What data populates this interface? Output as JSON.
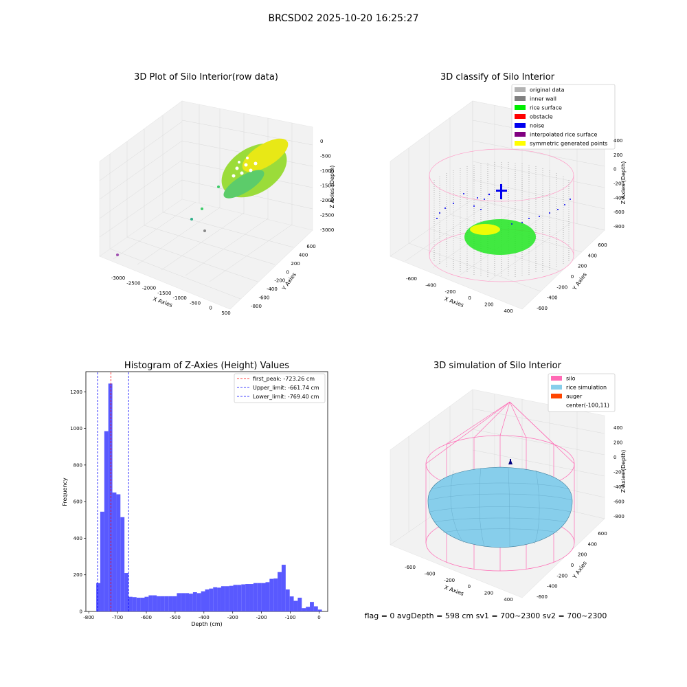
{
  "suptitle": "BRCSD02 2025-10-20 16:25:27",
  "status_text": "flag = 0     avgDepth = 598 cm  sv1 = 700~2300  sv2 = 700~2300",
  "panels": {
    "raw": {
      "title": "3D Plot of Silo Interior(row data)",
      "xlabel": "X Axies",
      "ylabel": "Y Axies",
      "zlabel": "Z Axies (Depth)",
      "xticks": [
        "-3000",
        "-2500",
        "-2000",
        "-1500",
        "-1000",
        "-500",
        "0",
        "500"
      ],
      "yticks": [
        "-800",
        "-600",
        "-400",
        "-200",
        "0",
        "200",
        "400",
        "600"
      ],
      "zticks": [
        "0",
        "-500",
        "-1000",
        "-1500",
        "-2000",
        "-2500",
        "-3000"
      ]
    },
    "classify": {
      "title": "3D classify of Silo Interior",
      "xlabel": "X Axies",
      "ylabel": "Y Axies",
      "zlabel": "Z Axies (Depth)",
      "xticks": [
        "-600",
        "-400",
        "-200",
        "0",
        "200",
        "400"
      ],
      "yticks": [
        "-600",
        "-400",
        "-200",
        "0",
        "200",
        "400",
        "600"
      ],
      "zticks": [
        "400",
        "200",
        "0",
        "-200",
        "-400",
        "-600",
        "-800"
      ],
      "legend": [
        {
          "label": "original data",
          "color": "#b3b3b3"
        },
        {
          "label": "inner wall",
          "color": "#808080"
        },
        {
          "label": "rice surface",
          "color": "#00ee00"
        },
        {
          "label": "obstacle",
          "color": "#ff0000"
        },
        {
          "label": "noise",
          "color": "#0000ee"
        },
        {
          "label": "interpolated rice surface",
          "color": "#800080"
        },
        {
          "label": "symmetric generated points",
          "color": "#ffff00"
        }
      ]
    },
    "simulation": {
      "title": "3D simulation of Silo Interior",
      "xlabel": "X Axies",
      "ylabel": "Y Axies",
      "zlabel": "Z Axies (Depth)",
      "xticks": [
        "-600",
        "-400",
        "-200",
        "0",
        "200",
        "400"
      ],
      "yticks": [
        "-600",
        "-400",
        "-200",
        "0",
        "200",
        "400",
        "600"
      ],
      "zticks": [
        "400",
        "200",
        "0",
        "-200",
        "-400",
        "-600",
        "-800"
      ],
      "legend": [
        {
          "label": "silo",
          "color": "#ff69b4"
        },
        {
          "label": "rice simulation",
          "color": "#87ceeb"
        },
        {
          "label": "auger",
          "color": "#ff4500"
        },
        {
          "label": "center(-100,11)",
          "color": ""
        }
      ]
    }
  },
  "chart_data": {
    "type": "bar",
    "title": "Histogram of Z-Axies (Height) Values",
    "xlabel": "Depth (cm)",
    "ylabel": "Frequency",
    "xlim": [
      -810,
      30
    ],
    "ylim": [
      0,
      1310
    ],
    "xticks": [
      -800,
      -700,
      -600,
      -500,
      -400,
      -300,
      -200,
      -100,
      0
    ],
    "yticks": [
      0,
      200,
      400,
      600,
      800,
      1000,
      1200
    ],
    "bin_width": 14,
    "bin_starts": [
      -774,
      -760,
      -746,
      -732,
      -718,
      -704,
      -690,
      -676,
      -662,
      -648,
      -634,
      -620,
      -606,
      -592,
      -578,
      -564,
      -550,
      -536,
      -522,
      -508,
      -494,
      -480,
      -466,
      -452,
      -438,
      -424,
      -410,
      -396,
      -382,
      -368,
      -354,
      -340,
      -326,
      -312,
      -298,
      -284,
      -270,
      -256,
      -242,
      -228,
      -214,
      -200,
      -186,
      -172,
      -158,
      -144,
      -130,
      -116,
      -102,
      -88,
      -74,
      -60,
      -46,
      -32,
      -18,
      -4
    ],
    "values": [
      155,
      545,
      985,
      1245,
      650,
      640,
      515,
      210,
      80,
      78,
      75,
      75,
      80,
      88,
      88,
      83,
      83,
      83,
      83,
      83,
      100,
      100,
      100,
      97,
      105,
      100,
      110,
      120,
      125,
      132,
      130,
      138,
      138,
      140,
      145,
      145,
      148,
      150,
      150,
      155,
      155,
      155,
      160,
      178,
      180,
      215,
      255,
      120,
      82,
      58,
      75,
      18,
      25,
      52,
      28,
      10
    ],
    "bar_color": "#5050ff",
    "lines": [
      {
        "label": "first_peak: -723.26 cm",
        "x": -723.26,
        "color": "#ff0000"
      },
      {
        "label": "Upper_limit: -661.74 cm",
        "x": -661.74,
        "color": "#0000ff"
      },
      {
        "label": "Lower_limit: -769.40 cm",
        "x": -769.4,
        "color": "#0000ff"
      }
    ],
    "legend_position": "top-right"
  }
}
